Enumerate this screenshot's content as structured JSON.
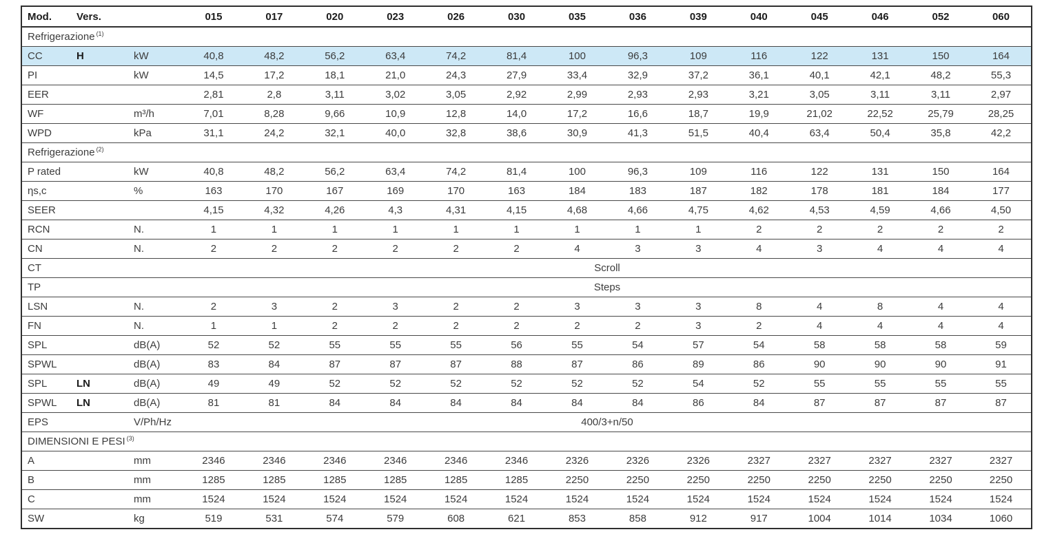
{
  "page": {
    "background": "#ffffff"
  },
  "table": {
    "colors": {
      "highlight_row": "#cde8f6",
      "row_border": "#474747",
      "outer_border": "#2e2e2e",
      "text": "#3c3c3c",
      "header_text": "#1c1c1c"
    },
    "header": {
      "mod": "Mod.",
      "vers": "Vers.",
      "unit": "",
      "models": [
        "015",
        "017",
        "020",
        "023",
        "026",
        "030",
        "035",
        "036",
        "039",
        "040",
        "045",
        "046",
        "052",
        "060"
      ]
    },
    "rows": [
      {
        "type": "section",
        "label": "Refrigerazione",
        "sup": "(1)"
      },
      {
        "type": "data",
        "label": "CC",
        "vers": "H",
        "unit": "kW",
        "highlight": true,
        "values": [
          "40,8",
          "48,2",
          "56,2",
          "63,4",
          "74,2",
          "81,4",
          "100",
          "96,3",
          "109",
          "116",
          "122",
          "131",
          "150",
          "164"
        ]
      },
      {
        "type": "data",
        "label": "PI",
        "vers": "",
        "unit": "kW",
        "values": [
          "14,5",
          "17,2",
          "18,1",
          "21,0",
          "24,3",
          "27,9",
          "33,4",
          "32,9",
          "37,2",
          "36,1",
          "40,1",
          "42,1",
          "48,2",
          "55,3"
        ]
      },
      {
        "type": "data",
        "label": "EER",
        "vers": "",
        "unit": "",
        "values": [
          "2,81",
          "2,8",
          "3,11",
          "3,02",
          "3,05",
          "2,92",
          "2,99",
          "2,93",
          "2,93",
          "3,21",
          "3,05",
          "3,11",
          "3,11",
          "2,97"
        ]
      },
      {
        "type": "data",
        "label": "WF",
        "vers": "",
        "unit": "m³/h",
        "values": [
          "7,01",
          "8,28",
          "9,66",
          "10,9",
          "12,8",
          "14,0",
          "17,2",
          "16,6",
          "18,7",
          "19,9",
          "21,02",
          "22,52",
          "25,79",
          "28,25"
        ]
      },
      {
        "type": "data",
        "label": "WPD",
        "vers": "",
        "unit": "kPa",
        "values": [
          "31,1",
          "24,2",
          "32,1",
          "40,0",
          "32,8",
          "38,6",
          "30,9",
          "41,3",
          "51,5",
          "40,4",
          "63,4",
          "50,4",
          "35,8",
          "42,2"
        ]
      },
      {
        "type": "section",
        "label": "Refrigerazione",
        "sup": "(2)"
      },
      {
        "type": "data",
        "label": "P rated",
        "vers": "",
        "unit": "kW",
        "values": [
          "40,8",
          "48,2",
          "56,2",
          "63,4",
          "74,2",
          "81,4",
          "100",
          "96,3",
          "109",
          "116",
          "122",
          "131",
          "150",
          "164"
        ]
      },
      {
        "type": "data",
        "label": "ηs,c",
        "vers": "",
        "unit": "%",
        "values": [
          "163",
          "170",
          "167",
          "169",
          "170",
          "163",
          "184",
          "183",
          "187",
          "182",
          "178",
          "181",
          "184",
          "177"
        ]
      },
      {
        "type": "data",
        "label": "SEER",
        "vers": "",
        "unit": "",
        "values": [
          "4,15",
          "4,32",
          "4,26",
          "4,3",
          "4,31",
          "4,15",
          "4,68",
          "4,66",
          "4,75",
          "4,62",
          "4,53",
          "4,59",
          "4,66",
          "4,50"
        ]
      },
      {
        "type": "data",
        "label": "RCN",
        "vers": "",
        "unit": "N.",
        "values": [
          "1",
          "1",
          "1",
          "1",
          "1",
          "1",
          "1",
          "1",
          "1",
          "2",
          "2",
          "2",
          "2",
          "2"
        ]
      },
      {
        "type": "data",
        "label": "CN",
        "vers": "",
        "unit": "N.",
        "values": [
          "2",
          "2",
          "2",
          "2",
          "2",
          "2",
          "4",
          "3",
          "3",
          "4",
          "3",
          "4",
          "4",
          "4"
        ]
      },
      {
        "type": "span",
        "label": "CT",
        "unit": "",
        "value": "Scroll"
      },
      {
        "type": "span",
        "label": "TP",
        "unit": "",
        "value": "Steps"
      },
      {
        "type": "data",
        "label": "LSN",
        "vers": "",
        "unit": "N.",
        "values": [
          "2",
          "3",
          "2",
          "3",
          "2",
          "2",
          "3",
          "3",
          "3",
          "8",
          "4",
          "8",
          "4",
          "4"
        ]
      },
      {
        "type": "data",
        "label": "FN",
        "vers": "",
        "unit": "N.",
        "values": [
          "1",
          "1",
          "2",
          "2",
          "2",
          "2",
          "2",
          "2",
          "3",
          "2",
          "4",
          "4",
          "4",
          "4"
        ]
      },
      {
        "type": "data",
        "label": "SPL",
        "vers": "",
        "unit": "dB(A)",
        "values": [
          "52",
          "52",
          "55",
          "55",
          "55",
          "56",
          "55",
          "54",
          "57",
          "54",
          "58",
          "58",
          "58",
          "59"
        ]
      },
      {
        "type": "data",
        "label": "SPWL",
        "vers": "",
        "unit": "dB(A)",
        "values": [
          "83",
          "84",
          "87",
          "87",
          "87",
          "88",
          "87",
          "86",
          "89",
          "86",
          "90",
          "90",
          "90",
          "91"
        ]
      },
      {
        "type": "data",
        "label": "SPL",
        "vers": "LN",
        "unit": "dB(A)",
        "values": [
          "49",
          "49",
          "52",
          "52",
          "52",
          "52",
          "52",
          "52",
          "54",
          "52",
          "55",
          "55",
          "55",
          "55"
        ]
      },
      {
        "type": "data",
        "label": "SPWL",
        "vers": "LN",
        "unit": "dB(A)",
        "values": [
          "81",
          "81",
          "84",
          "84",
          "84",
          "84",
          "84",
          "84",
          "86",
          "84",
          "87",
          "87",
          "87",
          "87"
        ]
      },
      {
        "type": "span",
        "label": "EPS",
        "unit": "V/Ph/Hz",
        "value": "400/3+n/50"
      },
      {
        "type": "section",
        "label": "DIMENSIONI E PESI",
        "sup": "(3)"
      },
      {
        "type": "data",
        "label": "A",
        "vers": "",
        "unit": "mm",
        "values": [
          "2346",
          "2346",
          "2346",
          "2346",
          "2346",
          "2346",
          "2326",
          "2326",
          "2326",
          "2327",
          "2327",
          "2327",
          "2327",
          "2327"
        ]
      },
      {
        "type": "data",
        "label": "B",
        "vers": "",
        "unit": "mm",
        "values": [
          "1285",
          "1285",
          "1285",
          "1285",
          "1285",
          "1285",
          "2250",
          "2250",
          "2250",
          "2250",
          "2250",
          "2250",
          "2250",
          "2250"
        ]
      },
      {
        "type": "data",
        "label": "C",
        "vers": "",
        "unit": "mm",
        "values": [
          "1524",
          "1524",
          "1524",
          "1524",
          "1524",
          "1524",
          "1524",
          "1524",
          "1524",
          "1524",
          "1524",
          "1524",
          "1524",
          "1524"
        ]
      },
      {
        "type": "data",
        "label": "SW",
        "vers": "",
        "unit": "kg",
        "values": [
          "519",
          "531",
          "574",
          "579",
          "608",
          "621",
          "853",
          "858",
          "912",
          "917",
          "1004",
          "1014",
          "1034",
          "1060"
        ]
      }
    ]
  }
}
